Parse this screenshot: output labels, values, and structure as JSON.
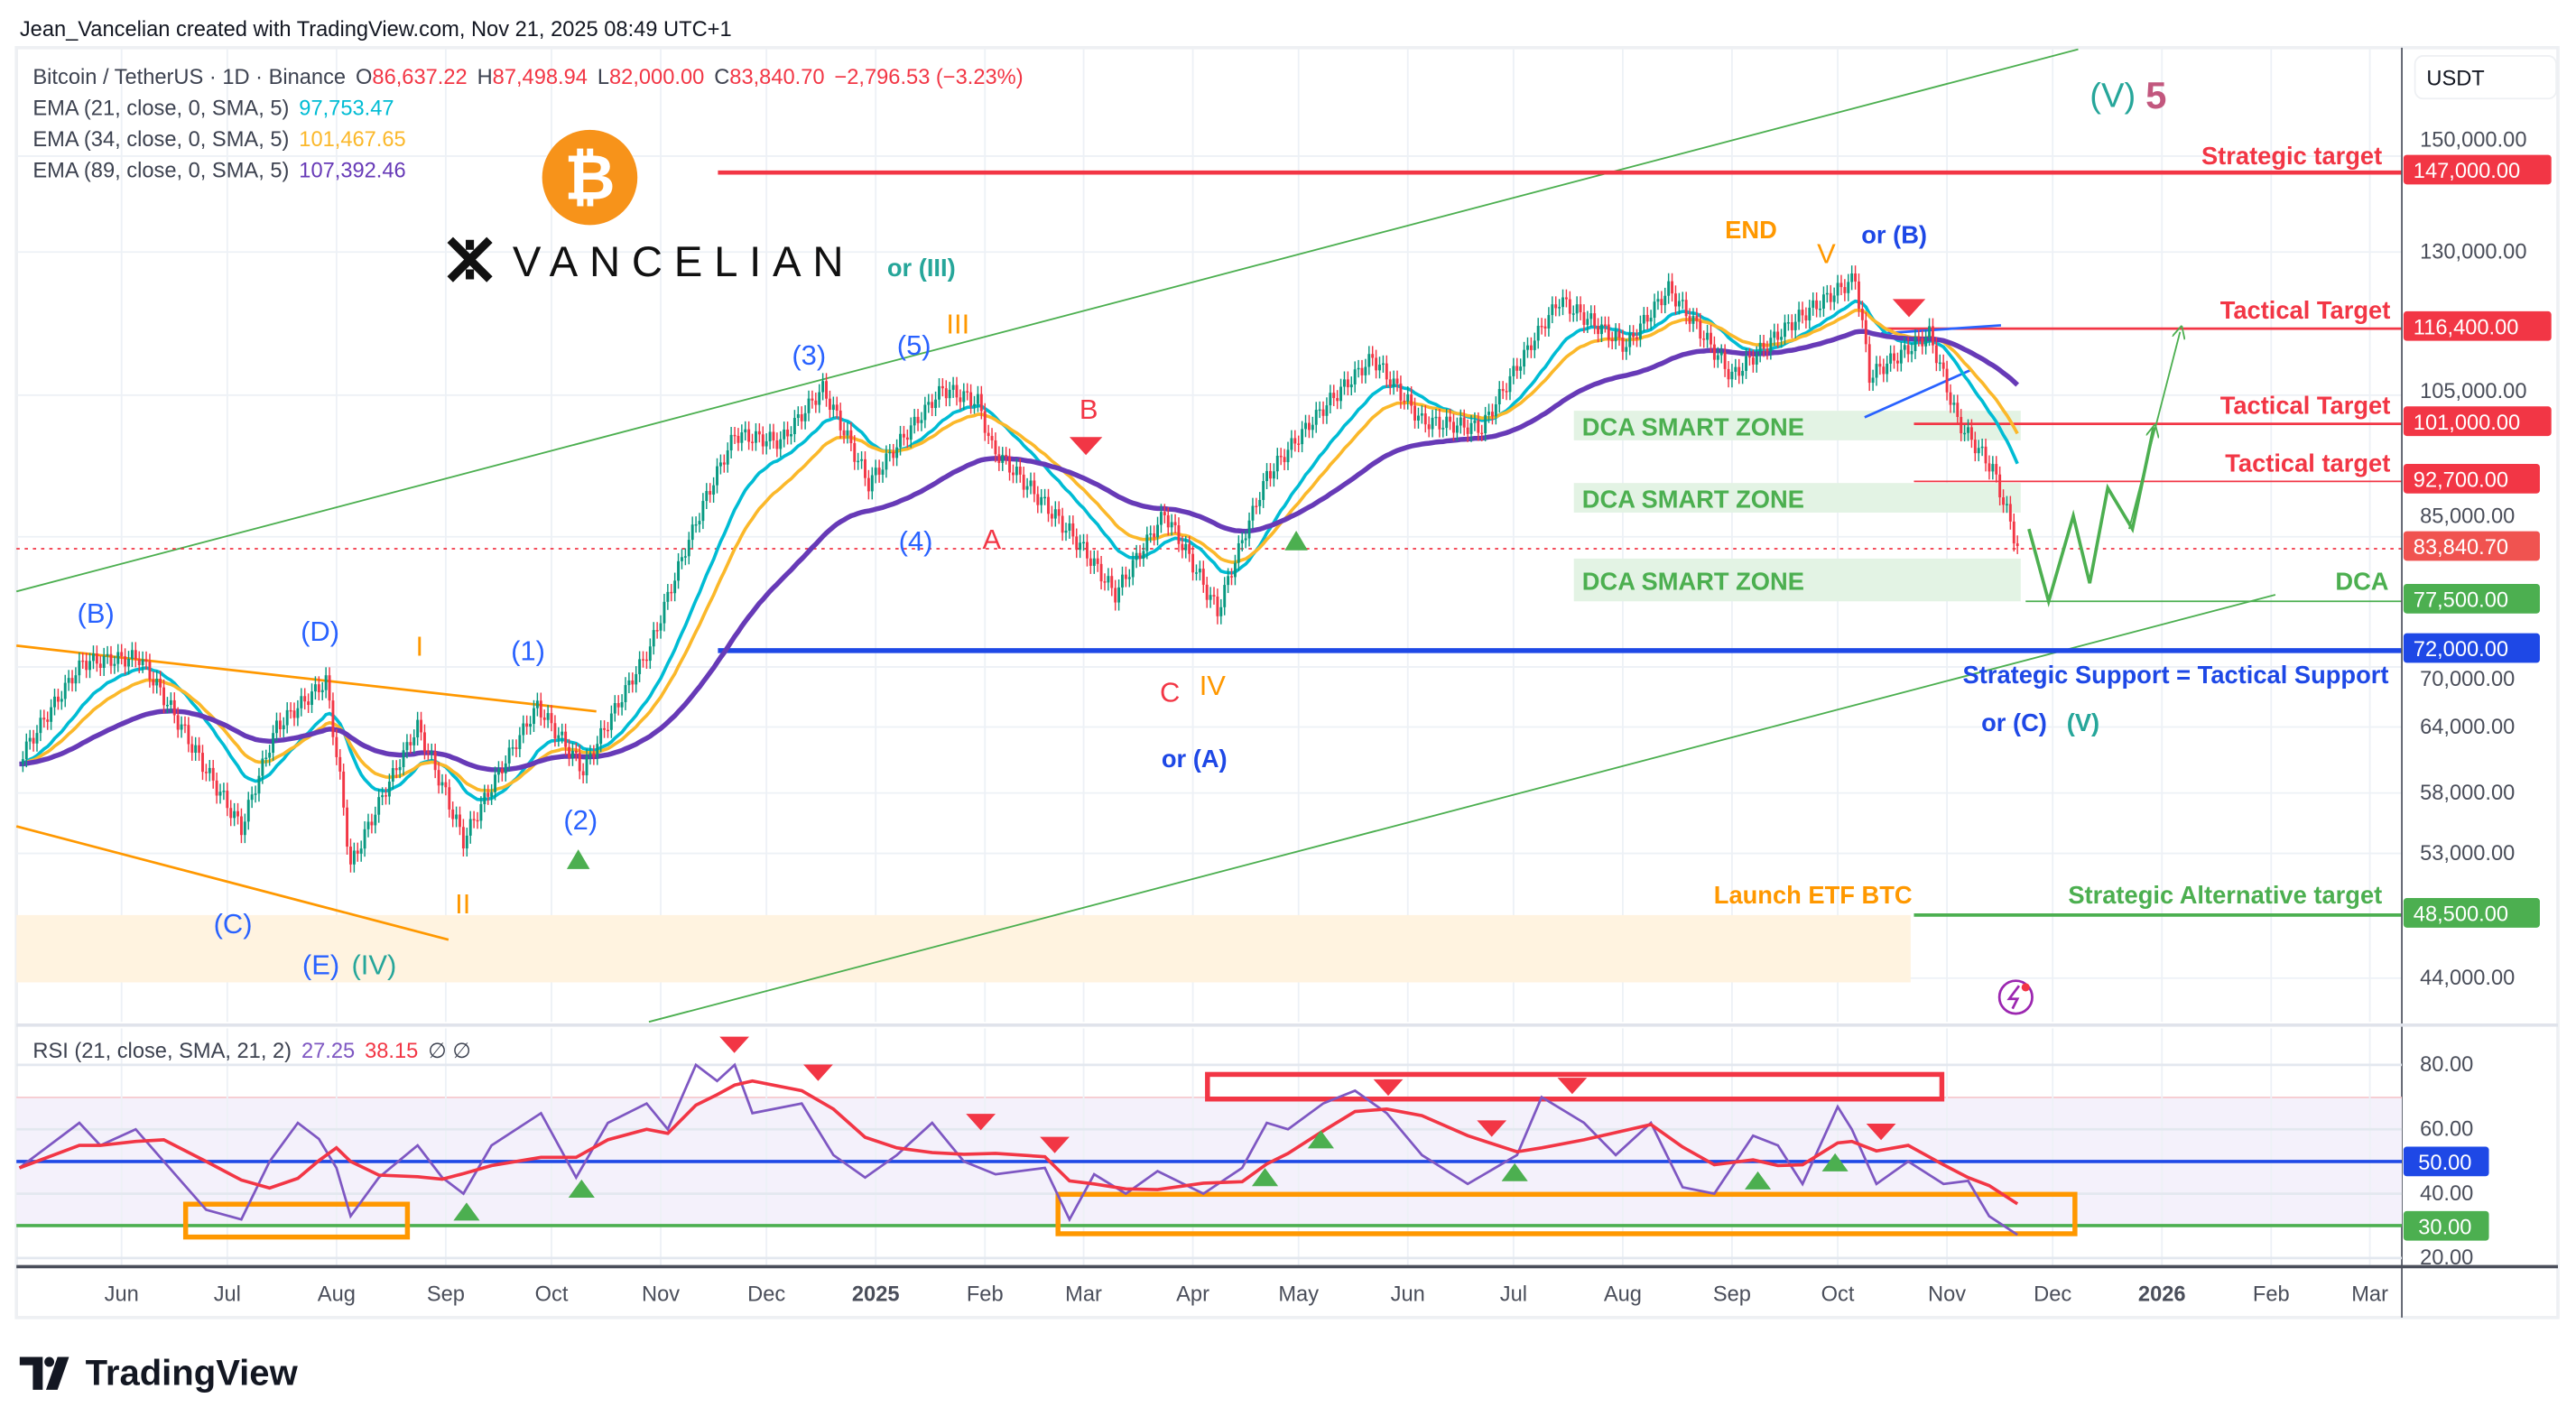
{
  "watermark": "Jean_Vancelian created with TradingView.com, Nov 21, 2025 08:49 UTC+1",
  "legend": {
    "symbol": "Bitcoin / TetherUS · 1D · Binance",
    "o_label": "O",
    "o": "86,637.22",
    "h_label": "H",
    "h": "87,498.94",
    "l_label": "L",
    "l": "82,000.00",
    "c_label": "C",
    "c": "83,840.70",
    "change": "−2,796.53 (−3.23%)",
    "ema21_label": "EMA (21, close, 0, SMA, 5)",
    "ema21": "97,753.47",
    "ema34_label": "EMA (34, close, 0, SMA, 5)",
    "ema34": "101,467.65",
    "ema89_label": "EMA (89, close, 0, SMA, 5)",
    "ema89": "107,392.46",
    "rsi_label": "RSI (21, close, SMA, 21, 2)",
    "rsi": "27.25",
    "rsi_ma": "38.15",
    "rsi_extra": "∅ ∅"
  },
  "brand": {
    "vancelian": "VANCELIAN",
    "bitcoin_icon": "bitcoin-logo",
    "tradingview": "TradingView"
  },
  "currency": "USDT",
  "colors": {
    "ema21": "#00bcd4",
    "ema34": "#fbb82a",
    "ema89": "#673ab7",
    "down": "#f23645",
    "up": "#4caf50",
    "support": "#1e48e6",
    "orange": "#ff9800",
    "rsi": "#7e57c2"
  },
  "chart_data": [
    {
      "type": "line",
      "title": "Bitcoin / TetherUS · 1D · Binance",
      "y_scale": "log",
      "ylim": [
        42000,
        160000
      ],
      "y_ticks": [
        "150,000.00",
        "130,000.00",
        "105,000.00",
        "85,000.00",
        "70,000.00",
        "64,000.00",
        "58,000.00",
        "53,000.00",
        "44,000.00"
      ],
      "x_ticks": [
        "Jun",
        "Jul",
        "Aug",
        "Sep",
        "Oct",
        "Nov",
        "Dec",
        "2025",
        "Feb",
        "Mar",
        "Apr",
        "May",
        "Jun",
        "Jul",
        "Aug",
        "Sep",
        "Oct",
        "Nov",
        "Dec",
        "2026",
        "Feb",
        "Mar"
      ],
      "grid": true,
      "series": [
        {
          "name": "Bitcoin / TetherUS",
          "points": [
            [
              "2024-05-03",
              61000
            ],
            [
              "2024-05-21",
              70500
            ],
            [
              "2024-06-06",
              71000
            ],
            [
              "2024-06-24",
              60500
            ],
            [
              "2024-07-05",
              55000
            ],
            [
              "2024-07-15",
              64000
            ],
            [
              "2024-07-29",
              68500
            ],
            [
              "2024-08-05",
              52000
            ],
            [
              "2024-08-24",
              64000
            ],
            [
              "2024-09-06",
              54000
            ],
            [
              "2024-09-27",
              66000
            ],
            [
              "2024-10-10",
              60000
            ],
            [
              "2024-10-29",
              72000
            ],
            [
              "2024-11-12",
              88000
            ],
            [
              "2024-11-22",
              99000
            ],
            [
              "2024-12-05",
              98000
            ],
            [
              "2024-12-17",
              106000
            ],
            [
              "2024-12-30",
              92000
            ],
            [
              "2025-01-20",
              106000
            ],
            [
              "2025-01-30",
              104000
            ],
            [
              "2025-02-03",
              97000
            ],
            [
              "2025-02-28",
              84000
            ],
            [
              "2025-03-10",
              78000
            ],
            [
              "2025-03-24",
              88000
            ],
            [
              "2025-04-08",
              76000
            ],
            [
              "2025-04-22",
              93000
            ],
            [
              "2025-05-08",
              103000
            ],
            [
              "2025-05-22",
              111000
            ],
            [
              "2025-06-05",
              101000
            ],
            [
              "2025-06-22",
              100000
            ],
            [
              "2025-07-14",
              121000
            ],
            [
              "2025-08-02",
              113000
            ],
            [
              "2025-08-14",
              123000
            ],
            [
              "2025-09-01",
              108000
            ],
            [
              "2025-09-18",
              117000
            ],
            [
              "2025-10-06",
              125000
            ],
            [
              "2025-10-10",
              108000
            ],
            [
              "2025-10-27",
              115000
            ],
            [
              "2025-11-04",
              101000
            ],
            [
              "2025-11-14",
              94000
            ],
            [
              "2025-11-21",
              83840.7
            ]
          ]
        },
        {
          "name": "EMA (21, close, 0, SMA, 5)",
          "period": 21,
          "last": 97753.47
        },
        {
          "name": "EMA (34, close, 0, SMA, 5)",
          "period": 34,
          "last": 101467.65
        },
        {
          "name": "EMA (89, close, 0, SMA, 5)",
          "period": 89,
          "last": 107392.46
        }
      ],
      "price_labels": [
        {
          "value": "147,000.00",
          "kind": "down"
        },
        {
          "value": "116,400.00",
          "kind": "down"
        },
        {
          "value": "101,000.00",
          "kind": "down"
        },
        {
          "value": "92,700.00",
          "kind": "down"
        },
        {
          "value": "83,840.70",
          "kind": "last"
        },
        {
          "value": "77,500.00",
          "kind": "up"
        },
        {
          "value": "72,000.00",
          "kind": "support"
        },
        {
          "value": "48,500.00",
          "kind": "up"
        }
      ],
      "annotations": {
        "strategic_target": "Strategic target",
        "tactical_target_1": "Tactical Target",
        "tactical_target_2": "Tactical Target",
        "tactical_target_3": "Tactical target",
        "dca_zone_1": "DCA SMART ZONE",
        "dca_zone_2": "DCA SMART ZONE",
        "dca_zone_3": "DCA SMART ZONE",
        "dca": "DCA",
        "support": "Strategic Support = Tactical Support",
        "alt_target": "Strategic Alternative target",
        "etf": "Launch ETF BTC",
        "or_c": "or (C)",
        "v_green": "(V)",
        "w_B": "(B)",
        "w_D": "(D)",
        "w_I": "I",
        "w_1": "(1)",
        "w_2": "(2)",
        "w_C": "(C)",
        "w_E": "(E)",
        "w_IV": "(IV)",
        "w_II": "II",
        "w_3": "(3)",
        "w_5": "(5)",
        "w_III": "III",
        "or_III": "or (III)",
        "w_4": "(4)",
        "w_A": "A",
        "w_Bred": "B",
        "w_Cred": "C",
        "w_IVo": "IV",
        "or_A": "or (A)",
        "end": "END",
        "w_V": "V",
        "or_B": "or (B)",
        "wave_V": "(V)",
        "wave_5": "5"
      }
    },
    {
      "type": "line",
      "title": "RSI (21, close, SMA, 21, 2)",
      "ylim": [
        15,
        85
      ],
      "y_ticks": [
        "80.00",
        "60.00",
        "40.00",
        "20.00"
      ],
      "levels": [
        {
          "value": "50.00",
          "color": "#1e48e6"
        },
        {
          "value": "30.00",
          "color": "#4caf50"
        }
      ],
      "band": [
        30,
        70
      ],
      "series": [
        {
          "name": "RSI",
          "points": [
            [
              "2024-05-03",
              48
            ],
            [
              "2024-05-20",
              62
            ],
            [
              "2024-05-26",
              55
            ],
            [
              "2024-06-05",
              60
            ],
            [
              "2024-06-13",
              50
            ],
            [
              "2024-06-25",
              35
            ],
            [
              "2024-07-05",
              32
            ],
            [
              "2024-07-13",
              50
            ],
            [
              "2024-07-21",
              62
            ],
            [
              "2024-07-27",
              57
            ],
            [
              "2024-08-01",
              48
            ],
            [
              "2024-08-05",
              33
            ],
            [
              "2024-08-13",
              45
            ],
            [
              "2024-08-24",
              55
            ],
            [
              "2024-08-31",
              45
            ],
            [
              "2024-09-06",
              40
            ],
            [
              "2024-09-14",
              55
            ],
            [
              "2024-09-28",
              65
            ],
            [
              "2024-10-08",
              45
            ],
            [
              "2024-10-17",
              62
            ],
            [
              "2024-10-28",
              68
            ],
            [
              "2024-11-03",
              60
            ],
            [
              "2024-11-11",
              80
            ],
            [
              "2024-11-17",
              75
            ],
            [
              "2024-11-22",
              80
            ],
            [
              "2024-11-27",
              65
            ],
            [
              "2024-12-11",
              68
            ],
            [
              "2024-12-20",
              52
            ],
            [
              "2024-12-29",
              45
            ],
            [
              "2025-01-07",
              52
            ],
            [
              "2025-01-17",
              62
            ],
            [
              "2025-01-26",
              50
            ],
            [
              "2025-02-04",
              46
            ],
            [
              "2025-02-18",
              48
            ],
            [
              "2025-02-25",
              32
            ],
            [
              "2025-03-04",
              46
            ],
            [
              "2025-03-13",
              40
            ],
            [
              "2025-03-22",
              47
            ],
            [
              "2025-04-04",
              40
            ],
            [
              "2025-04-15",
              48
            ],
            [
              "2025-04-22",
              62
            ],
            [
              "2025-04-28",
              60
            ],
            [
              "2025-05-08",
              68
            ],
            [
              "2025-05-17",
              72
            ],
            [
              "2025-05-26",
              65
            ],
            [
              "2025-06-05",
              52
            ],
            [
              "2025-06-18",
              43
            ],
            [
              "2025-07-02",
              52
            ],
            [
              "2025-07-09",
              70
            ],
            [
              "2025-07-21",
              62
            ],
            [
              "2025-07-30",
              52
            ],
            [
              "2025-08-09",
              62
            ],
            [
              "2025-08-18",
              42
            ],
            [
              "2025-08-27",
              40
            ],
            [
              "2025-09-07",
              58
            ],
            [
              "2025-09-14",
              55
            ],
            [
              "2025-09-21",
              43
            ],
            [
              "2025-10-01",
              67
            ],
            [
              "2025-10-05",
              60
            ],
            [
              "2025-10-12",
              43
            ],
            [
              "2025-10-21",
              50
            ],
            [
              "2025-10-31",
              43
            ],
            [
              "2025-11-07",
              44
            ],
            [
              "2025-11-13",
              33
            ],
            [
              "2025-11-21",
              27.25
            ]
          ]
        },
        {
          "name": "RSI-based MA",
          "period": 21,
          "last": 38.15
        }
      ]
    }
  ]
}
